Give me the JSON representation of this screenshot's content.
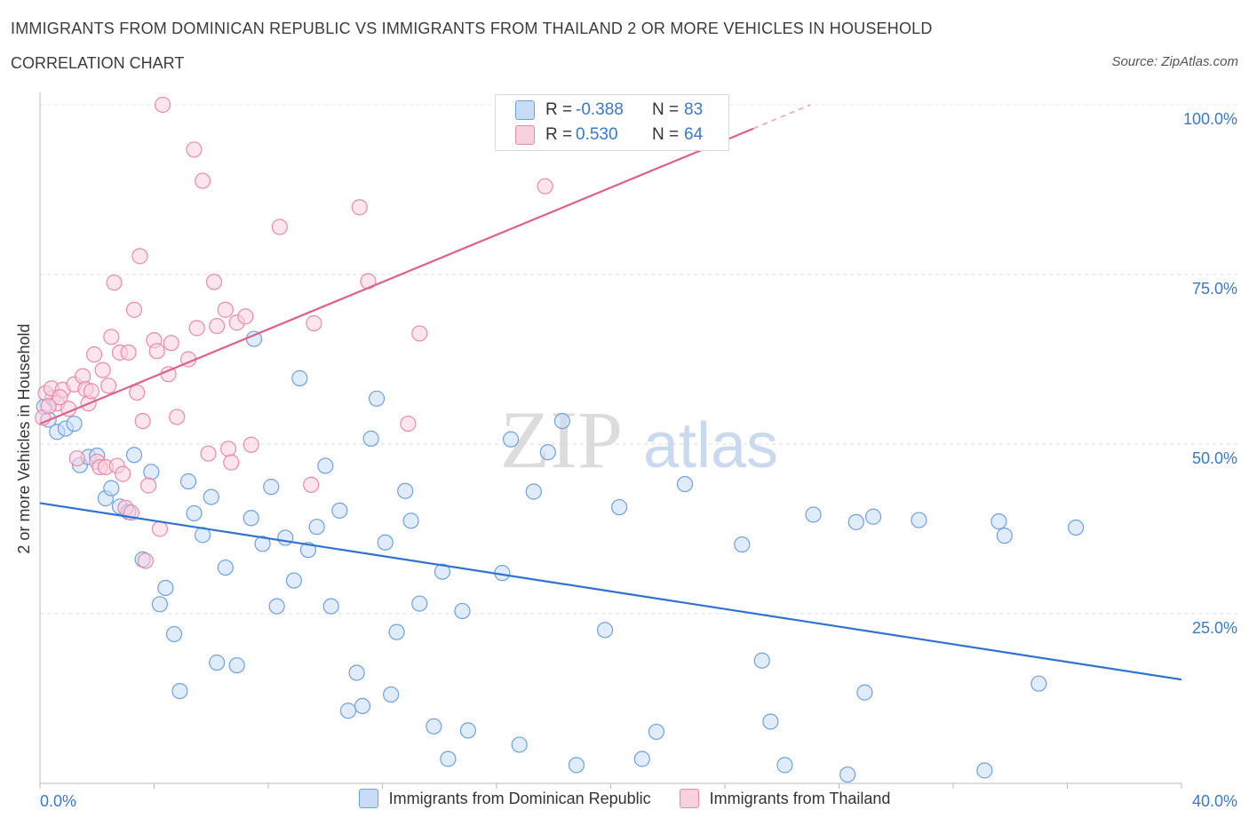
{
  "title": "IMMIGRANTS FROM DOMINICAN REPUBLIC VS IMMIGRANTS FROM THAILAND 2 OR MORE VEHICLES IN HOUSEHOLD",
  "subtitle": "CORRELATION CHART",
  "source": "Source: ZipAtlas.com",
  "watermark": {
    "zip": "ZIP",
    "atlas": "atlas"
  },
  "stats": [
    {
      "r_label": "R =",
      "r_value": "-0.388",
      "n_label": "N =",
      "n_value": "83",
      "color": "#a9c8f0"
    },
    {
      "r_label": "R =",
      "r_value": "0.530",
      "n_label": "N =",
      "n_value": "64",
      "color": "#f7b8cb"
    }
  ],
  "legend": [
    {
      "label": "Immigrants from Dominican Republic",
      "color": "#a9c8f0"
    },
    {
      "label": "Immigrants from Thailand",
      "color": "#f7b8cb"
    }
  ],
  "chart_data": {
    "type": "scatter",
    "ylabel": "2 or more Vehicles in Household",
    "xlabel": "",
    "xlim": [
      0,
      40
    ],
    "ylim": [
      0,
      100
    ],
    "x_tick_labels": [
      "0.0%",
      "40.0%"
    ],
    "y_ticks": [
      25,
      50,
      75,
      100
    ],
    "y_tick_labels": [
      "25.0%",
      "50.0%",
      "75.0%",
      "100.0%"
    ],
    "grid": true,
    "series": [
      {
        "name": "Immigrants from Dominican Republic",
        "color": "#6ea0e0",
        "fill": "#c9dcf5",
        "trend": {
          "x": [
            0,
            40
          ],
          "y": [
            41.3,
            15.3
          ],
          "color": "#2f72d0"
        },
        "points": [
          [
            0.3,
            53.6
          ],
          [
            0.6,
            51.8
          ],
          [
            0.9,
            52.3
          ],
          [
            1.2,
            53.0
          ],
          [
            1.4,
            46.9
          ],
          [
            1.7,
            48.1
          ],
          [
            2.0,
            48.3
          ],
          [
            2.3,
            42.0
          ],
          [
            2.5,
            43.5
          ],
          [
            2.8,
            40.8
          ],
          [
            3.1,
            40.0
          ],
          [
            3.3,
            48.4
          ],
          [
            3.6,
            33.0
          ],
          [
            3.9,
            45.9
          ],
          [
            4.2,
            26.4
          ],
          [
            4.4,
            28.8
          ],
          [
            4.7,
            22.0
          ],
          [
            4.9,
            13.6
          ],
          [
            5.2,
            44.5
          ],
          [
            5.4,
            39.8
          ],
          [
            5.7,
            36.6
          ],
          [
            6.0,
            42.2
          ],
          [
            6.2,
            17.8
          ],
          [
            6.5,
            31.8
          ],
          [
            6.9,
            17.4
          ],
          [
            7.4,
            39.1
          ],
          [
            7.5,
            65.5
          ],
          [
            7.8,
            35.3
          ],
          [
            8.1,
            43.7
          ],
          [
            8.3,
            26.1
          ],
          [
            8.6,
            36.2
          ],
          [
            8.9,
            29.9
          ],
          [
            9.1,
            59.7
          ],
          [
            9.4,
            34.4
          ],
          [
            9.7,
            37.8
          ],
          [
            10.0,
            46.8
          ],
          [
            10.2,
            26.1
          ],
          [
            10.5,
            40.2
          ],
          [
            10.8,
            10.7
          ],
          [
            11.1,
            16.3
          ],
          [
            11.3,
            11.4
          ],
          [
            11.6,
            50.8
          ],
          [
            11.8,
            56.7
          ],
          [
            12.1,
            35.5
          ],
          [
            12.3,
            13.1
          ],
          [
            12.5,
            22.3
          ],
          [
            12.8,
            43.1
          ],
          [
            13.0,
            38.7
          ],
          [
            13.3,
            26.5
          ],
          [
            13.8,
            8.4
          ],
          [
            14.1,
            31.2
          ],
          [
            14.3,
            3.6
          ],
          [
            14.8,
            25.4
          ],
          [
            15.0,
            7.8
          ],
          [
            16.2,
            31.0
          ],
          [
            16.5,
            50.7
          ],
          [
            16.8,
            5.7
          ],
          [
            17.3,
            43.0
          ],
          [
            17.8,
            48.8
          ],
          [
            18.3,
            53.4
          ],
          [
            18.8,
            2.7
          ],
          [
            19.8,
            22.6
          ],
          [
            20.3,
            40.7
          ],
          [
            21.1,
            3.6
          ],
          [
            21.6,
            7.6
          ],
          [
            22.6,
            44.1
          ],
          [
            24.6,
            35.2
          ],
          [
            25.3,
            18.1
          ],
          [
            25.6,
            9.1
          ],
          [
            26.1,
            2.7
          ],
          [
            27.1,
            39.6
          ],
          [
            28.3,
            1.3
          ],
          [
            28.6,
            38.5
          ],
          [
            28.9,
            13.4
          ],
          [
            29.2,
            39.3
          ],
          [
            30.8,
            38.8
          ],
          [
            33.1,
            1.9
          ],
          [
            33.6,
            38.6
          ],
          [
            33.8,
            36.5
          ],
          [
            35.0,
            14.7
          ],
          [
            36.3,
            37.7
          ],
          [
            0.15,
            55.5
          ],
          [
            0.45,
            56.8
          ]
        ]
      },
      {
        "name": "Immigrants from Thailand",
        "color": "#e98aa8",
        "fill": "#f9d0dd",
        "trend": {
          "x": [
            0,
            25
          ],
          "y": [
            53.0,
            96.5
          ],
          "dash_to": [
            27,
            100
          ],
          "color": "#e0608a"
        },
        "points": [
          [
            0.2,
            57.5
          ],
          [
            0.4,
            58.2
          ],
          [
            0.6,
            56.0
          ],
          [
            0.8,
            58.0
          ],
          [
            1.0,
            55.2
          ],
          [
            1.2,
            58.8
          ],
          [
            1.3,
            47.9
          ],
          [
            1.5,
            60.0
          ],
          [
            1.6,
            58.1
          ],
          [
            1.7,
            56.0
          ],
          [
            1.8,
            57.8
          ],
          [
            1.9,
            63.2
          ],
          [
            2.0,
            47.4
          ],
          [
            2.1,
            46.6
          ],
          [
            2.2,
            60.9
          ],
          [
            2.3,
            46.6
          ],
          [
            2.4,
            58.6
          ],
          [
            2.5,
            65.8
          ],
          [
            2.6,
            73.8
          ],
          [
            2.7,
            46.8
          ],
          [
            2.8,
            63.5
          ],
          [
            2.9,
            45.6
          ],
          [
            3.0,
            40.6
          ],
          [
            3.1,
            63.5
          ],
          [
            3.2,
            39.9
          ],
          [
            3.3,
            69.8
          ],
          [
            3.4,
            57.6
          ],
          [
            3.5,
            77.7
          ],
          [
            3.6,
            53.4
          ],
          [
            3.7,
            32.8
          ],
          [
            3.8,
            43.9
          ],
          [
            4.0,
            65.3
          ],
          [
            4.1,
            63.7
          ],
          [
            4.2,
            37.5
          ],
          [
            4.3,
            100.0
          ],
          [
            4.5,
            60.3
          ],
          [
            4.6,
            64.9
          ],
          [
            4.8,
            54.0
          ],
          [
            5.2,
            62.5
          ],
          [
            5.4,
            93.4
          ],
          [
            5.5,
            67.1
          ],
          [
            5.7,
            88.8
          ],
          [
            5.9,
            48.6
          ],
          [
            6.1,
            73.9
          ],
          [
            6.2,
            67.4
          ],
          [
            6.5,
            69.8
          ],
          [
            6.6,
            49.3
          ],
          [
            6.7,
            47.3
          ],
          [
            6.9,
            67.9
          ],
          [
            7.2,
            68.8
          ],
          [
            7.4,
            49.9
          ],
          [
            8.4,
            82.0
          ],
          [
            9.5,
            44.0
          ],
          [
            9.6,
            67.8
          ],
          [
            11.2,
            84.9
          ],
          [
            11.5,
            74.0
          ],
          [
            12.9,
            53.0
          ],
          [
            13.3,
            66.3
          ],
          [
            17.7,
            88.0
          ],
          [
            18.9,
            95.7
          ],
          [
            22.3,
            100.0
          ],
          [
            0.1,
            53.9
          ],
          [
            0.3,
            55.6
          ],
          [
            0.7,
            56.9
          ]
        ]
      }
    ]
  }
}
